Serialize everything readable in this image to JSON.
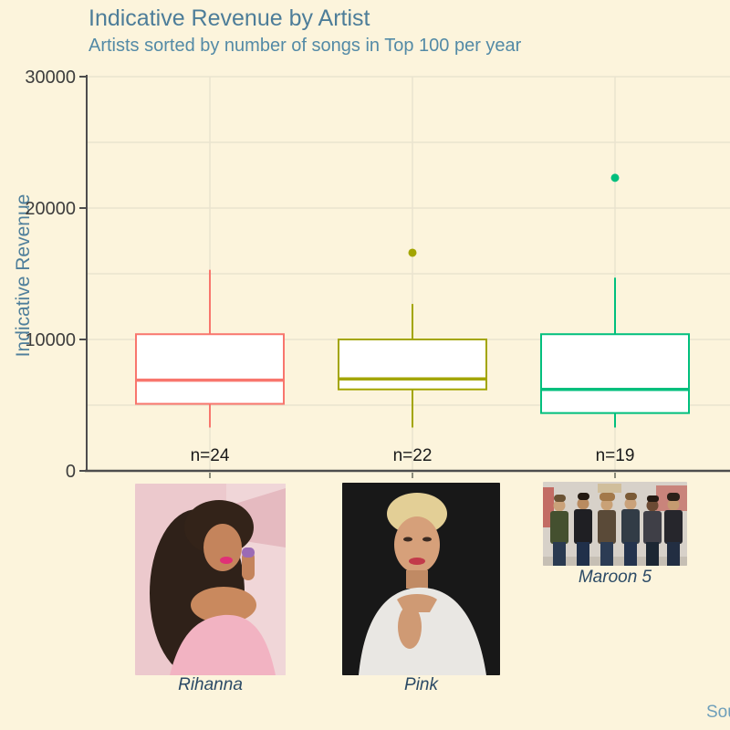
{
  "page": {
    "background": "#fcf4dc"
  },
  "header": {
    "title": "Indicative Revenue by Artist",
    "subtitle": "Artists sorted by number of songs in Top 100 per year"
  },
  "footer": {
    "source_text": "Sou"
  },
  "photos": [
    {
      "caption": "Rihanna"
    },
    {
      "caption": "Pink"
    },
    {
      "caption": "Maroon 5"
    }
  ],
  "chart_data": {
    "type": "boxplot",
    "title": "Indicative Revenue by Artist",
    "subtitle": "Artists sorted by number of songs in Top 100 per year",
    "ylabel": "Indicative Revenue",
    "xlabel": "",
    "ylim": [
      0,
      30000
    ],
    "ytick_values": [
      0,
      10000,
      20000,
      30000
    ],
    "ytick_labels": [
      "0",
      "10000",
      "20000",
      "30000"
    ],
    "minor_grid_step": 5000,
    "grid": true,
    "legend": "none",
    "categories": [
      "Rihanna",
      "Pink",
      "Maroon 5"
    ],
    "series": [
      {
        "name": "Rihanna",
        "n": 24,
        "n_label": "n=24",
        "color": "#F8766D",
        "whisker_low": 3300,
        "q1": 5100,
        "median": 6900,
        "q3": 10400,
        "whisker_high": 15300,
        "outliers": []
      },
      {
        "name": "Pink",
        "n": 22,
        "n_label": "n=22",
        "color": "#A3A500",
        "whisker_low": 3300,
        "q1": 6200,
        "median": 7000,
        "q3": 10000,
        "whisker_high": 12700,
        "outliers": [
          16600
        ]
      },
      {
        "name": "Maroon 5",
        "n": 19,
        "n_label": "n=19",
        "color": "#00BF7D",
        "whisker_low": 3300,
        "q1": 4400,
        "median": 6200,
        "q3": 10400,
        "whisker_high": 14700,
        "outliers": [
          22300
        ]
      }
    ],
    "colors": {
      "background": "#fcf4dc",
      "gridline": "#eae3cf",
      "axis_line": "#4d4d4d",
      "tick_label": "#3d3d3d",
      "n_label": "#1a1a1a",
      "box_fill": "#ffffff"
    }
  }
}
